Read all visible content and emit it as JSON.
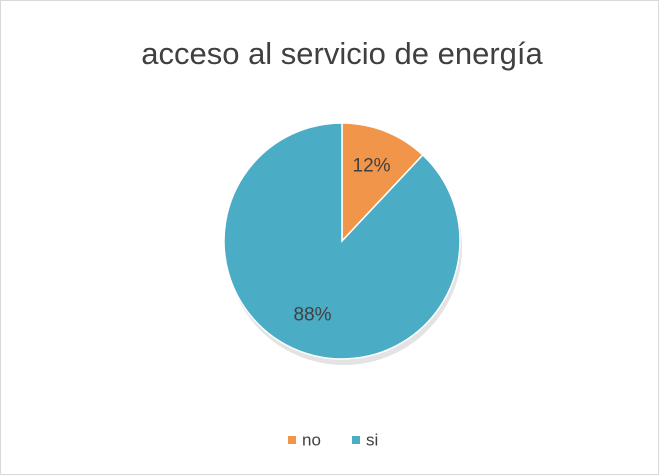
{
  "chart_data": {
    "type": "pie",
    "title": "acceso al servicio de energía",
    "categories": [
      "no",
      "si"
    ],
    "values": [
      12,
      88
    ],
    "value_labels": [
      "12%",
      "88%"
    ],
    "colors": [
      "#f0954a",
      "#4bacc6"
    ],
    "legend": "bottom"
  }
}
